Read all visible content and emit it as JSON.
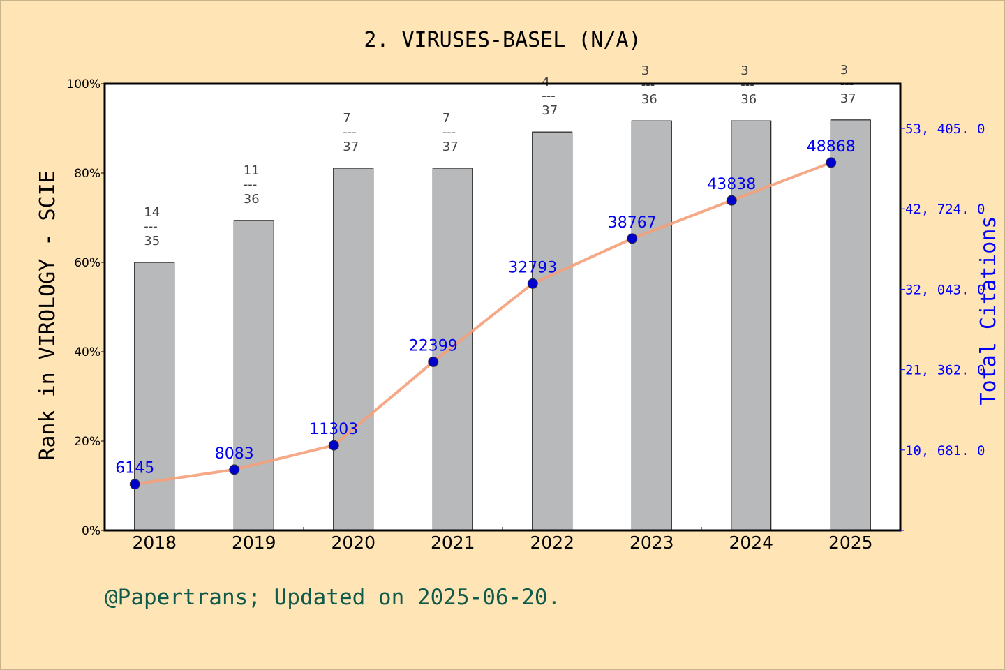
{
  "chart_data": {
    "type": "bar+line",
    "title": "2. VIRUSES-BASEL (N/A)",
    "categories": [
      "2018",
      "2019",
      "2020",
      "2021",
      "2022",
      "2023",
      "2024",
      "2025"
    ],
    "bar_series": {
      "axis": "left",
      "ylabel": "Rank in VIROLOGY - SCIE",
      "values_percent": [
        60.0,
        69.4,
        81.1,
        81.1,
        89.2,
        91.7,
        91.7,
        91.9
      ],
      "rank_labels": [
        {
          "rank": "14",
          "total": "35"
        },
        {
          "rank": "11",
          "total": "36"
        },
        {
          "rank": "7",
          "total": "37"
        },
        {
          "rank": "7",
          "total": "37"
        },
        {
          "rank": "4",
          "total": "37"
        },
        {
          "rank": "3",
          "total": "36"
        },
        {
          "rank": "3",
          "total": "36"
        },
        {
          "rank": "3",
          "total": "37"
        }
      ],
      "separator": "---",
      "color": "#b8b9bb"
    },
    "line_series": {
      "axis": "right",
      "ylabel": "Total Citations",
      "values": [
        6145,
        8083,
        11303,
        22399,
        32793,
        38767,
        43838,
        48868
      ],
      "line_color": "#f4a07a",
      "marker_color": "#0000cc"
    },
    "left_axis": {
      "ylim": [
        0,
        100
      ],
      "ticks": [
        "0%",
        "20%",
        "40%",
        "60%",
        "80%",
        "100%"
      ],
      "tick_values": [
        0,
        20,
        40,
        60,
        80,
        100
      ]
    },
    "right_axis": {
      "ylim": [
        0,
        59339
      ],
      "ticks": [
        "10, 681. 0",
        "21, 362. 0",
        "32, 043. 0",
        "42, 724. 0",
        "53, 405. 0"
      ],
      "tick_values": [
        10681,
        21362,
        32043,
        42724,
        53405
      ],
      "color": "#0000ff"
    },
    "grid": false
  },
  "footer": "@Papertrans; Updated on 2025-06-20.",
  "colors": {
    "background": "#FFE4B5",
    "plot_background": "#ffffff"
  }
}
